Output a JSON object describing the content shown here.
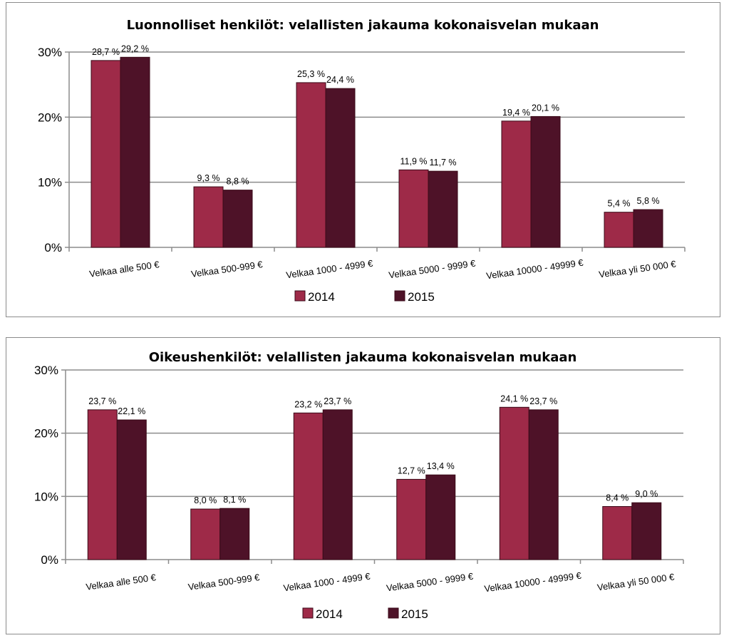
{
  "chart_data": [
    {
      "type": "bar",
      "title": "Luonnolliset henkilöt: velallisten jakauma kokonaisvelan mukaan",
      "categories": [
        "Velkaa alle 500 €",
        "Velkaa 500-999 €",
        "Velkaa 1000 - 4999 €",
        "Velkaa 5000 - 9999 €",
        "Velkaa 10000 - 49999 €",
        "Velkaa yli 50 000 €"
      ],
      "series": [
        {
          "name": "2014",
          "values": [
            28.7,
            9.3,
            25.3,
            11.9,
            19.4,
            5.4
          ],
          "labels": [
            "28,7 %",
            "9,3 %",
            "25,3 %",
            "11,9 %",
            "19,4 %",
            "5,4 %"
          ],
          "color": "#9e2a48"
        },
        {
          "name": "2015",
          "values": [
            29.2,
            8.8,
            24.4,
            11.7,
            20.1,
            5.8
          ],
          "labels": [
            "29,2 %",
            "8,8 %",
            "24,4 %",
            "11,7 %",
            "20,1 %",
            "5,8 %"
          ],
          "color": "#4e1228"
        }
      ],
      "y_ticks": [
        "0%",
        "10%",
        "20%",
        "30%"
      ],
      "ylim": [
        0,
        30
      ],
      "grid": true,
      "legend": "bottom"
    },
    {
      "type": "bar",
      "title": "Oikeushenkilöt: velallisten jakauma kokonaisvelan mukaan",
      "categories": [
        "Velkaa alle 500 €",
        "Velkaa 500-999 €",
        "Velkaa 1000 - 4999 €",
        "Velkaa 5000 - 9999 €",
        "Velkaa 10000 - 49999 €",
        "Velkaa yli 50 000 €"
      ],
      "series": [
        {
          "name": "2014",
          "values": [
            23.7,
            8.0,
            23.2,
            12.7,
            24.1,
            8.4
          ],
          "labels": [
            "23,7 %",
            "8,0 %",
            "23,2 %",
            "12,7 %",
            "24,1 %",
            "8,4 %"
          ],
          "color": "#9e2a48"
        },
        {
          "name": "2015",
          "values": [
            22.1,
            8.1,
            23.7,
            13.4,
            23.7,
            9.0
          ],
          "labels": [
            "22,1 %",
            "8,1 %",
            "23,7 %",
            "13,4 %",
            "23,7 %",
            "9,0 %"
          ],
          "color": "#4e1228"
        }
      ],
      "y_ticks": [
        "0%",
        "10%",
        "20%",
        "30%"
      ],
      "ylim": [
        0,
        30
      ],
      "grid": true,
      "legend": "bottom"
    }
  ]
}
